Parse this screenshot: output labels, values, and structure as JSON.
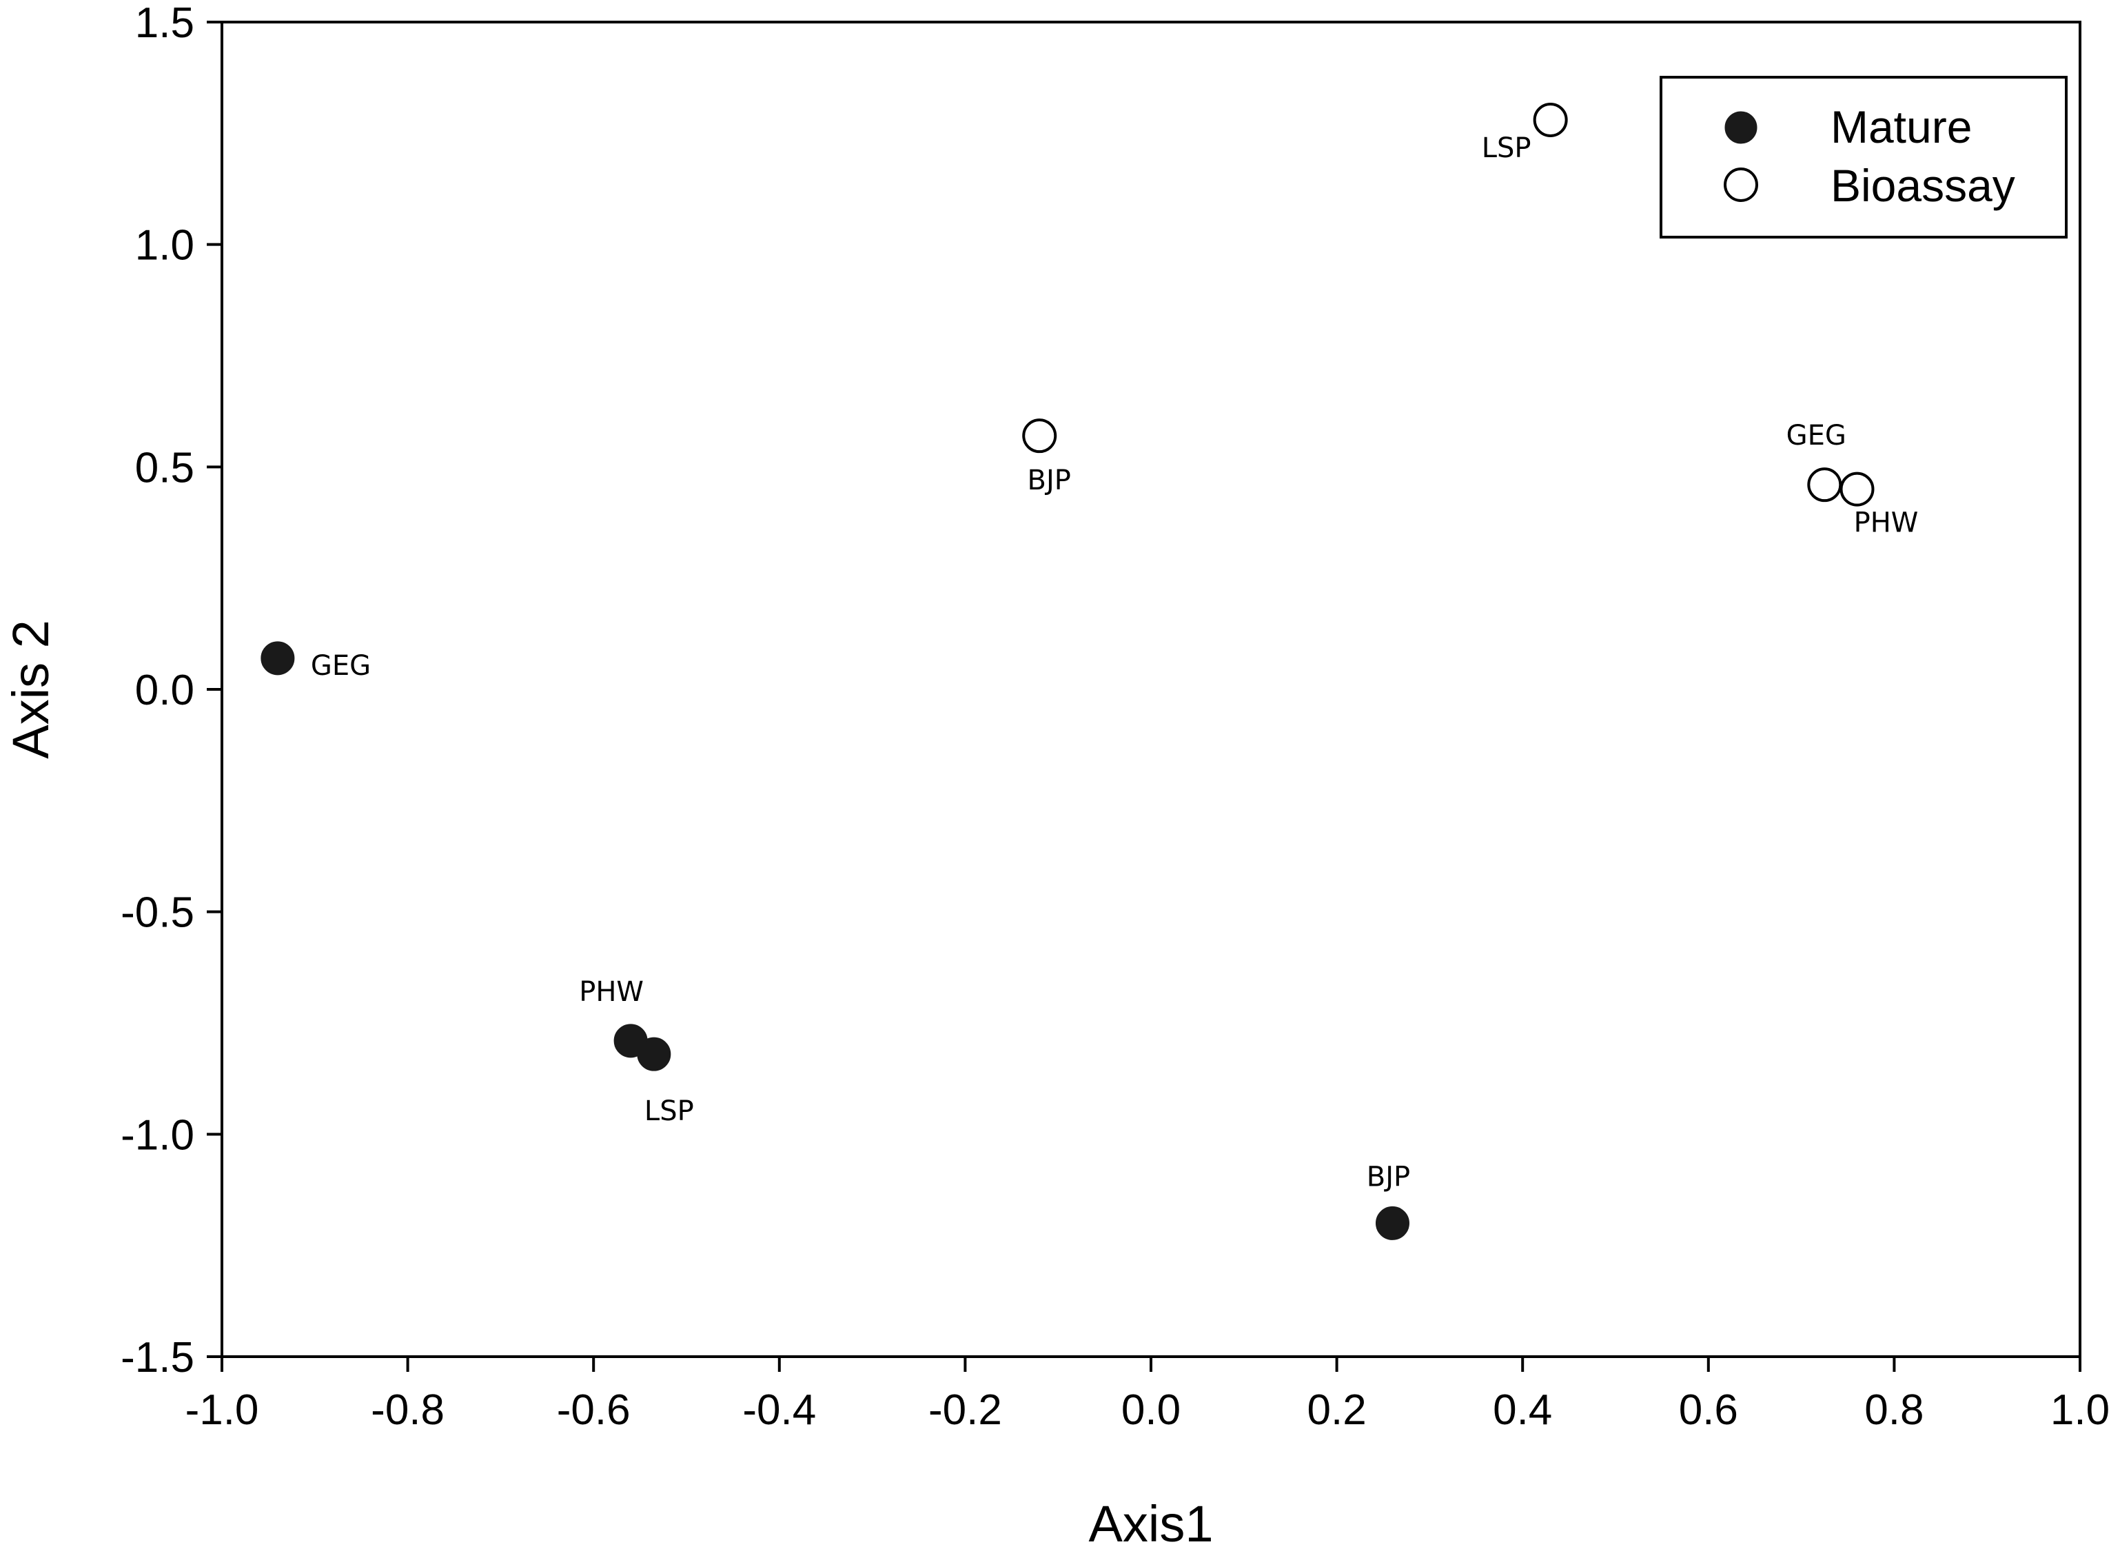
{
  "chart_data": {
    "type": "scatter",
    "title": "",
    "xlabel": "Axis1",
    "ylabel": "Axis 2",
    "xlim": [
      -1.0,
      1.0
    ],
    "ylim": [
      -1.5,
      1.5
    ],
    "x_ticks": [
      "-1.0",
      "-0.8",
      "-0.6",
      "-0.4",
      "-0.2",
      "0.0",
      "0.2",
      "0.4",
      "0.6",
      "0.8",
      "1.0"
    ],
    "y_ticks": [
      "1.5",
      "1.0",
      "0.5",
      "0.0",
      "-0.5",
      "-1.0",
      "-1.5"
    ],
    "grid": false,
    "legend_position": "top-right",
    "series": [
      {
        "name": "Mature",
        "marker": "filled-circle",
        "color": "#1a1a1a",
        "points": [
          {
            "label": "GEG",
            "x": -0.94,
            "y": 0.07
          },
          {
            "label": "PHW",
            "x": -0.56,
            "y": -0.79
          },
          {
            "label": "LSP",
            "x": -0.535,
            "y": -0.82
          },
          {
            "label": "BJP",
            "x": 0.26,
            "y": -1.2
          }
        ]
      },
      {
        "name": "Bioassay",
        "marker": "open-circle",
        "color": "#ffffff",
        "points": [
          {
            "label": "LSP",
            "x": 0.43,
            "y": 1.28
          },
          {
            "label": "BJP",
            "x": -0.12,
            "y": 0.57
          },
          {
            "label": "GEG",
            "x": 0.725,
            "y": 0.46
          },
          {
            "label": "PHW",
            "x": 0.76,
            "y": 0.45
          }
        ]
      }
    ]
  }
}
